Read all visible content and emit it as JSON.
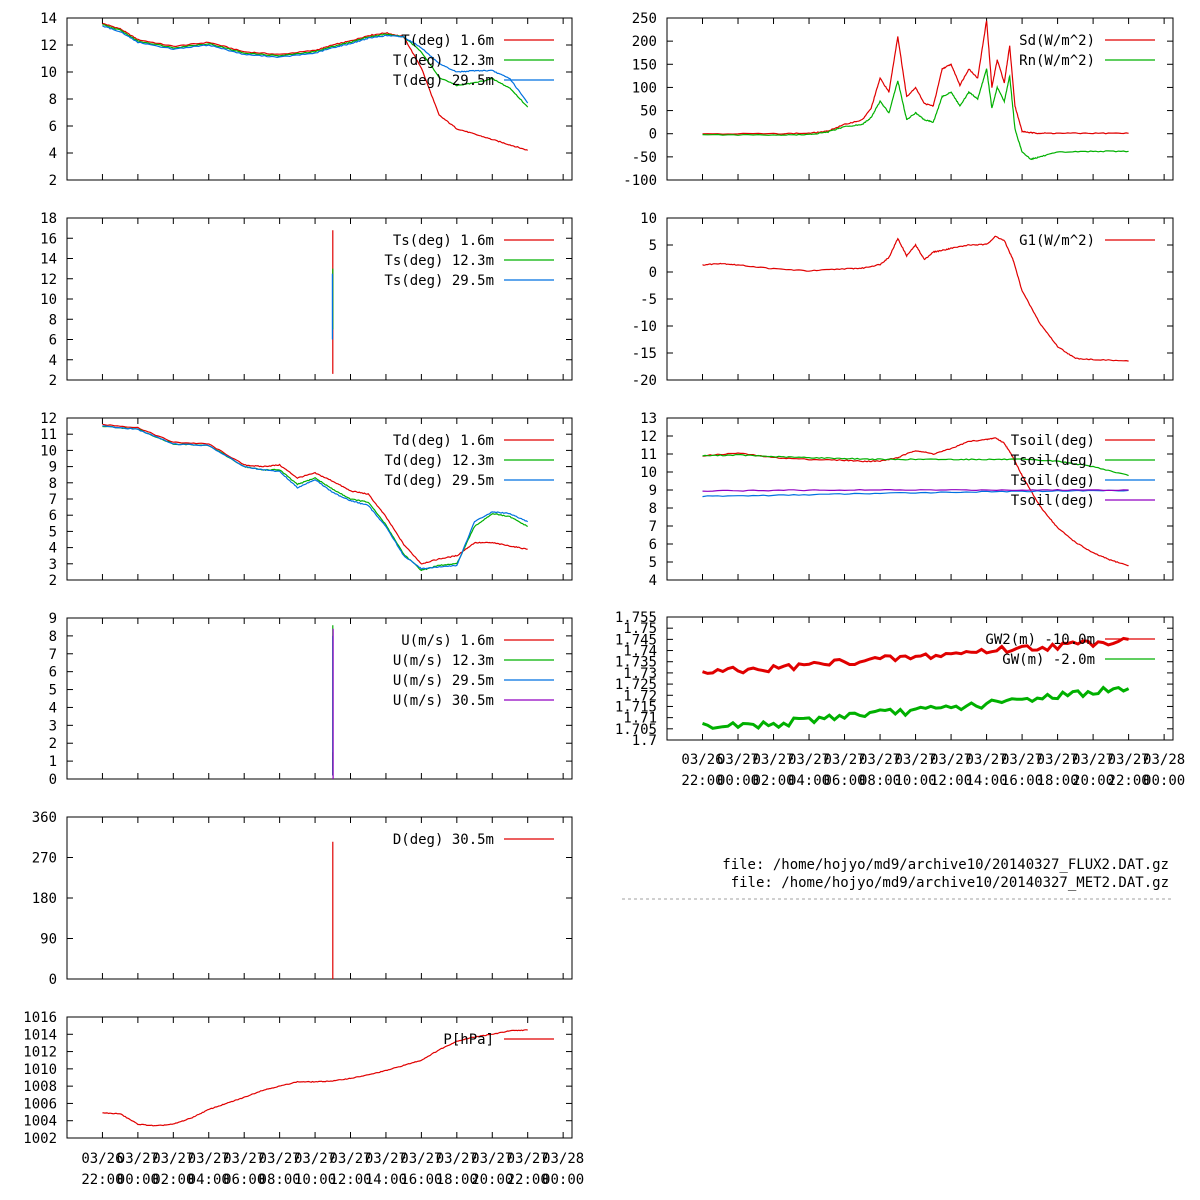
{
  "colors": {
    "red": "#e00000",
    "green": "#00b000",
    "blue": "#0070e0",
    "purple": "#9000c0",
    "axis": "#000000",
    "separator": "#a0a0a0"
  },
  "x_labels": {
    "line1": [
      "03/26",
      "03/27",
      "03/27",
      "03/27",
      "03/27",
      "03/27",
      "03/27",
      "03/27",
      "03/27",
      "03/27",
      "03/27",
      "03/27",
      "03/27",
      "03/28"
    ],
    "line2": [
      "22:00",
      "00:00",
      "02:00",
      "04:00",
      "06:00",
      "08:00",
      "10:00",
      "12:00",
      "14:00",
      "16:00",
      "18:00",
      "20:00",
      "22:00",
      "00:00"
    ]
  },
  "files": [
    "file: /home/hojyo/md9/archive10/20140327_FLUX2.DAT.gz",
    "file: /home/hojyo/md9/archive10/20140327_MET2.DAT.gz"
  ],
  "chart_data": [
    {
      "id": "T",
      "type": "line",
      "x_unit": "hours after 2014-03-26 22:00",
      "ylim": [
        2,
        14
      ],
      "yticks": [
        "2",
        "4",
        "6",
        "8",
        "10",
        "12",
        "14"
      ],
      "series": [
        {
          "name": "T(deg)  1.6m",
          "color": "red",
          "x": [
            0,
            1,
            2,
            4,
            6,
            8,
            10,
            12,
            13,
            14,
            15,
            16,
            17,
            18,
            19,
            20,
            21,
            22,
            23,
            24
          ],
          "y": [
            13.6,
            13.2,
            12.4,
            11.9,
            12.2,
            11.5,
            11.3,
            11.6,
            12.0,
            12.3,
            12.7,
            12.9,
            12.6,
            10.3,
            6.8,
            5.8,
            5.4,
            5.0,
            4.6,
            4.2
          ]
        },
        {
          "name": "T(deg) 12.3m",
          "color": "green",
          "x": [
            0,
            1,
            2,
            4,
            6,
            8,
            10,
            12,
            13,
            14,
            15,
            16,
            17,
            18,
            19,
            20,
            21,
            22,
            23,
            24
          ],
          "y": [
            13.5,
            13.1,
            12.3,
            11.8,
            12.1,
            11.4,
            11.2,
            11.5,
            11.9,
            12.2,
            12.6,
            12.8,
            12.6,
            11.5,
            9.6,
            9.0,
            9.2,
            9.5,
            8.8,
            7.4
          ]
        },
        {
          "name": "T(deg) 29.5m",
          "color": "blue",
          "x": [
            0,
            1,
            2,
            4,
            6,
            8,
            10,
            12,
            13,
            14,
            15,
            16,
            17,
            18,
            19,
            20,
            21,
            22,
            23,
            24
          ],
          "y": [
            13.4,
            13.0,
            12.2,
            11.7,
            12.0,
            11.3,
            11.1,
            11.4,
            11.8,
            12.1,
            12.5,
            12.7,
            12.6,
            11.8,
            10.6,
            10.0,
            10.1,
            10.1,
            9.5,
            7.7
          ]
        }
      ]
    },
    {
      "id": "Ts",
      "type": "line",
      "x_unit": "hours after 2014-03-26 22:00",
      "ylim": [
        2,
        18
      ],
      "yticks": [
        "2",
        "4",
        "6",
        "8",
        "10",
        "12",
        "14",
        "16",
        "18"
      ],
      "series": [
        {
          "name": "Ts(deg)  1.6m",
          "color": "red",
          "x": [
            13.0,
            13.0
          ],
          "y": [
            2.6,
            16.8
          ]
        },
        {
          "name": "Ts(deg) 12.3m",
          "color": "green",
          "x": [
            13.0,
            13.0
          ],
          "y": [
            7.0,
            13.0
          ]
        },
        {
          "name": "Ts(deg) 29.5m",
          "color": "blue",
          "x": [
            12.98,
            12.98
          ],
          "y": [
            6.0,
            12.5
          ]
        }
      ]
    },
    {
      "id": "Td",
      "type": "line",
      "x_unit": "hours after 2014-03-26 22:00",
      "ylim": [
        2,
        12
      ],
      "yticks": [
        "2",
        "3",
        "4",
        "5",
        "6",
        "7",
        "8",
        "9",
        "10",
        "11",
        "12"
      ],
      "series": [
        {
          "name": "Td(deg)  1.6m",
          "color": "red",
          "x": [
            0,
            2,
            4,
            6,
            8,
            9,
            10,
            11,
            12,
            13,
            14,
            15,
            16,
            17,
            18,
            19,
            20,
            21,
            22,
            23,
            24
          ],
          "y": [
            11.6,
            11.4,
            10.5,
            10.4,
            9.1,
            9.0,
            9.1,
            8.3,
            8.6,
            8.1,
            7.5,
            7.3,
            5.9,
            4.2,
            3.0,
            3.3,
            3.5,
            4.3,
            4.3,
            4.1,
            3.9
          ]
        },
        {
          "name": "Td(deg) 12.3m",
          "color": "green",
          "x": [
            0,
            2,
            4,
            6,
            8,
            9,
            10,
            11,
            12,
            13,
            14,
            15,
            16,
            17,
            18,
            19,
            20,
            21,
            22,
            23,
            24
          ],
          "y": [
            11.5,
            11.3,
            10.4,
            10.3,
            9.0,
            8.8,
            8.8,
            7.9,
            8.3,
            7.6,
            7.0,
            6.8,
            5.4,
            3.6,
            2.6,
            2.9,
            3.0,
            5.3,
            6.1,
            5.9,
            5.3
          ]
        },
        {
          "name": "Td(deg) 29.5m",
          "color": "blue",
          "x": [
            0,
            2,
            4,
            6,
            8,
            9,
            10,
            11,
            12,
            13,
            14,
            15,
            16,
            17,
            18,
            19,
            20,
            21,
            22,
            23,
            24
          ],
          "y": [
            11.5,
            11.3,
            10.4,
            10.3,
            9.0,
            8.8,
            8.7,
            7.7,
            8.2,
            7.4,
            6.9,
            6.6,
            5.3,
            3.5,
            2.7,
            2.8,
            2.9,
            5.6,
            6.2,
            6.1,
            5.6
          ]
        }
      ]
    },
    {
      "id": "U",
      "type": "line",
      "x_unit": "hours after 2014-03-26 22:00",
      "ylim": [
        0,
        9
      ],
      "yticks": [
        "0",
        "1",
        "2",
        "3",
        "4",
        "5",
        "6",
        "7",
        "8",
        "9"
      ],
      "series": [
        {
          "name": "U(m/s)  1.6m",
          "color": "red",
          "x": [
            13.0,
            13.0
          ],
          "y": [
            0.2,
            1.5
          ]
        },
        {
          "name": "U(m/s) 12.3m",
          "color": "green",
          "x": [
            13.0,
            13.0
          ],
          "y": [
            0.2,
            8.6
          ]
        },
        {
          "name": "U(m/s) 29.5m",
          "color": "blue",
          "x": [
            13.0,
            13.0
          ],
          "y": [
            0.2,
            8.0
          ]
        },
        {
          "name": "U(m/s) 30.5m",
          "color": "purple",
          "x": [
            13.02,
            13.02
          ],
          "y": [
            0.0,
            8.4
          ]
        }
      ]
    },
    {
      "id": "D",
      "type": "line",
      "x_unit": "hours after 2014-03-26 22:00",
      "ylim": [
        0,
        360
      ],
      "yticks": [
        "0",
        "90",
        "180",
        "270",
        "360"
      ],
      "series": [
        {
          "name": "D(deg)  30.5m",
          "color": "red",
          "x": [
            13.0,
            13.0
          ],
          "y": [
            0,
            305
          ]
        }
      ]
    },
    {
      "id": "P",
      "type": "line",
      "x_unit": "hours after 2014-03-26 22:00",
      "ylim": [
        1002,
        1016
      ],
      "yticks": [
        "1002",
        "1004",
        "1006",
        "1008",
        "1010",
        "1012",
        "1014",
        "1016"
      ],
      "series": [
        {
          "name": "P[hPa]",
          "color": "red",
          "x": [
            0,
            1,
            2,
            3,
            4,
            5,
            6,
            7,
            8,
            9,
            10,
            11,
            12,
            13,
            14,
            15,
            16,
            17,
            18,
            19,
            20,
            21,
            22,
            23,
            24
          ],
          "y": [
            1004.9,
            1004.8,
            1003.6,
            1003.4,
            1003.6,
            1004.3,
            1005.3,
            1006.0,
            1006.7,
            1007.5,
            1008.0,
            1008.5,
            1008.5,
            1008.6,
            1008.9,
            1009.3,
            1009.8,
            1010.4,
            1011.0,
            1012.2,
            1013.2,
            1013.7,
            1014.0,
            1014.4,
            1014.5
          ]
        }
      ]
    },
    {
      "id": "Rad",
      "type": "line",
      "x_unit": "hours after 2014-03-26 22:00",
      "ylim": [
        -100,
        250
      ],
      "yticks": [
        "-100",
        "-50",
        "0",
        "50",
        "100",
        "150",
        "200",
        "250"
      ],
      "series": [
        {
          "name": "Sd(W/m^2)",
          "color": "red",
          "x": [
            0,
            4,
            6,
            7,
            8,
            9,
            9.5,
            10,
            10.5,
            11,
            11.5,
            12,
            12.5,
            13,
            13.5,
            14,
            14.5,
            15,
            15.5,
            16,
            16.3,
            16.6,
            17,
            17.3,
            17.6,
            18,
            18.5,
            19,
            20,
            22,
            24
          ],
          "y": [
            0,
            0,
            1,
            5,
            20,
            30,
            55,
            120,
            90,
            210,
            80,
            100,
            65,
            60,
            140,
            150,
            105,
            140,
            120,
            245,
            100,
            160,
            110,
            190,
            60,
            5,
            2,
            1,
            1,
            1,
            1
          ]
        },
        {
          "name": "Rn(W/m^2)",
          "color": "green",
          "x": [
            0,
            4,
            6,
            7,
            8,
            9,
            9.5,
            10,
            10.5,
            11,
            11.5,
            12,
            12.5,
            13,
            13.5,
            14,
            14.5,
            15,
            15.5,
            16,
            16.3,
            16.6,
            17,
            17.3,
            17.6,
            18,
            18.5,
            19,
            20,
            22,
            24
          ],
          "y": [
            -2,
            -3,
            -2,
            3,
            15,
            20,
            35,
            70,
            45,
            115,
            30,
            45,
            30,
            25,
            80,
            90,
            60,
            90,
            75,
            140,
            55,
            100,
            70,
            125,
            10,
            -40,
            -55,
            -50,
            -40,
            -38,
            -38
          ]
        }
      ]
    },
    {
      "id": "G1",
      "type": "line",
      "x_unit": "hours after 2014-03-26 22:00",
      "ylim": [
        -20,
        10
      ],
      "yticks": [
        "-20",
        "-15",
        "-10",
        "-5",
        "0",
        "5",
        "10"
      ],
      "series": [
        {
          "name": "G1(W/m^2)",
          "color": "red",
          "x": [
            0,
            1,
            2,
            4,
            6,
            8,
            9,
            10,
            10.5,
            11,
            11.5,
            12,
            12.5,
            13,
            13.5,
            14,
            15,
            16,
            16.5,
            17,
            17.5,
            18,
            19,
            20,
            21,
            22,
            24
          ],
          "y": [
            1.3,
            1.6,
            1.3,
            0.6,
            0.2,
            0.6,
            0.7,
            1.4,
            2.7,
            6.2,
            3.0,
            5.0,
            2.3,
            3.7,
            4.0,
            4.4,
            5.0,
            5.1,
            6.6,
            5.8,
            2.2,
            -3.5,
            -9.5,
            -13.8,
            -16.0,
            -16.2,
            -16.5
          ]
        }
      ]
    },
    {
      "id": "Tsoil",
      "type": "line",
      "x_unit": "hours after 2014-03-26 22:00",
      "ylim": [
        4,
        13
      ],
      "yticks": [
        "4",
        "5",
        "6",
        "7",
        "8",
        "9",
        "10",
        "11",
        "12",
        "13"
      ],
      "series": [
        {
          "name": "Tsoil(deg)",
          "color": "red",
          "x": [
            0,
            2,
            4,
            6,
            8,
            9,
            10,
            11,
            12,
            13,
            14,
            15,
            16,
            16.5,
            17,
            17.5,
            18,
            19,
            20,
            21,
            22,
            23,
            24
          ],
          "y": [
            10.9,
            11.05,
            10.8,
            10.7,
            10.65,
            10.6,
            10.6,
            10.8,
            11.2,
            11.0,
            11.3,
            11.7,
            11.8,
            11.9,
            11.6,
            10.8,
            9.8,
            8.1,
            6.9,
            6.1,
            5.5,
            5.1,
            4.8
          ]
        },
        {
          "name": "Tsoil(deg)",
          "color": "green",
          "x": [
            0,
            2,
            4,
            6,
            8,
            10,
            12,
            14,
            16,
            18,
            20,
            22,
            24
          ],
          "y": [
            10.9,
            10.95,
            10.85,
            10.8,
            10.75,
            10.7,
            10.7,
            10.7,
            10.7,
            10.7,
            10.6,
            10.3,
            9.8
          ]
        },
        {
          "name": "Tsoil(deg)",
          "color": "blue",
          "x": [
            0,
            4,
            8,
            12,
            16,
            20,
            24
          ],
          "y": [
            8.65,
            8.7,
            8.78,
            8.85,
            8.9,
            8.95,
            8.98
          ]
        },
        {
          "name": "Tsoil(deg)",
          "color": "purple",
          "x": [
            0,
            4,
            8,
            12,
            16,
            20,
            24
          ],
          "y": [
            8.95,
            8.98,
            9.0,
            9.0,
            9.0,
            9.0,
            9.0
          ]
        }
      ]
    },
    {
      "id": "GW",
      "type": "line",
      "x_unit": "hours after 2014-03-26 22:00",
      "ylim": [
        1.7,
        1.755
      ],
      "yticks": [
        "1.7",
        "1.705",
        "1.71",
        "1.715",
        "1.72",
        "1.725",
        "1.73",
        "1.735",
        "1.74",
        "1.745",
        "1.75",
        "1.755"
      ],
      "series": [
        {
          "name": "GW2(m) -10.0m",
          "color": "red",
          "x": [
            0,
            4,
            8,
            12,
            16,
            20,
            24
          ],
          "y": [
            1.73,
            1.732,
            1.735,
            1.737,
            1.74,
            1.742,
            1.745
          ]
        },
        {
          "name": "GW(m) -2.0m",
          "color": "green",
          "x": [
            0,
            4,
            8,
            12,
            16,
            20,
            24
          ],
          "y": [
            1.706,
            1.707,
            1.711,
            1.713,
            1.716,
            1.72,
            1.723
          ]
        }
      ]
    }
  ]
}
